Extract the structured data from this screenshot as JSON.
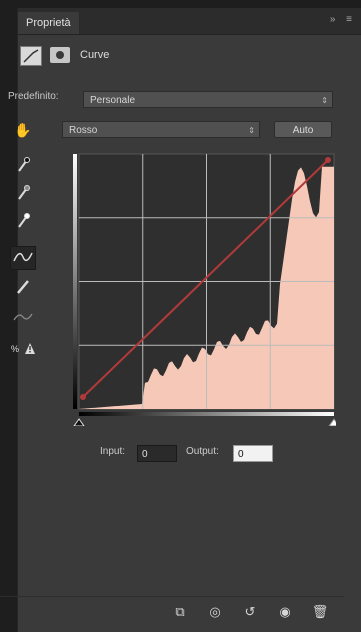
{
  "tab": {
    "title": "Proprietà",
    "controls": "»  ≡"
  },
  "header": {
    "title": "Curve",
    "adjustment_icon": "curves-adjustment-icon",
    "mask_icon": "layer-mask-icon"
  },
  "preset": {
    "label": "Predefinito:",
    "value": "Personale"
  },
  "channel": {
    "value": "Rosso"
  },
  "auto_button": {
    "label": "Auto"
  },
  "tools": [
    {
      "name": "target-adjust-icon"
    },
    {
      "name": "black-point-eyedropper-icon"
    },
    {
      "name": "gray-point-eyedropper-icon"
    },
    {
      "name": "white-point-eyedropper-icon"
    },
    {
      "name": "curve-edit-icon",
      "active": true
    },
    {
      "name": "pencil-icon"
    },
    {
      "name": "smooth-icon"
    },
    {
      "name": "clipping-warning-icon"
    }
  ],
  "io": {
    "input_label": "Input:",
    "input_value": "0",
    "output_label": "Output:",
    "output_value": "0"
  },
  "colors": {
    "histogram_fill": "#f6c8b8",
    "curve": "#b33a3a",
    "graph_bg": "#2f2f2f"
  },
  "bottom_icons": [
    "clip-to-layer-icon",
    "view-previous-state-icon",
    "reset-icon",
    "visibility-icon",
    "delete-icon"
  ]
}
